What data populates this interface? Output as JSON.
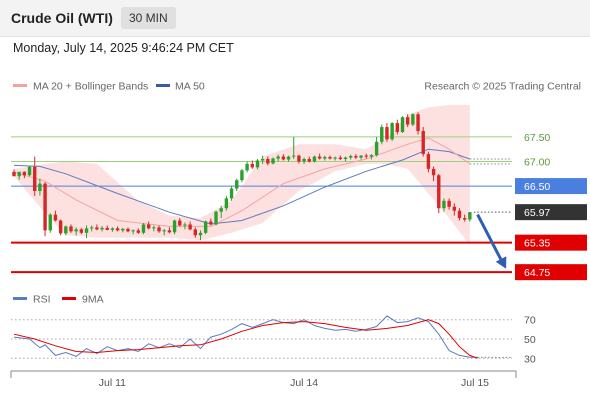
{
  "header": {
    "title": "Crude Oil (WTI)",
    "timeframe": "30 MIN",
    "datetime": "Monday, July 14, 2025 9:46:24 PM CET"
  },
  "legend": {
    "ma20_bb": "MA 20 + Bollinger Bands",
    "ma50": "MA 50",
    "credit": "Research © 2025 Trading Central",
    "rsi": "RSI",
    "rsi_ma": "9MA"
  },
  "colors": {
    "up": "#2ca02c",
    "down": "#d62728",
    "bollinger_fill": "#fde0e0",
    "ma20": "#f4a3a3",
    "ma50": "#5b7cc0",
    "support": "#e00000",
    "pivot": "#4a7fe0",
    "resistance": "#9bd17c",
    "last_price": "#333333"
  },
  "chart_data": [
    {
      "type": "candlestick",
      "title": "Crude Oil (WTI) 30 MIN",
      "x_ticks": [
        "Jul 11",
        "Jul 14",
        "Jul 15"
      ],
      "ylim": [
        64.55,
        68.25
      ],
      "candles": [
        [
          66.79,
          66.84,
          66.7,
          66.7
        ],
        [
          66.7,
          66.79,
          66.63,
          66.79
        ],
        [
          66.79,
          66.8,
          66.66,
          66.72
        ],
        [
          66.72,
          66.91,
          66.7,
          66.89
        ],
        [
          66.89,
          67.1,
          66.3,
          66.4
        ],
        [
          66.4,
          66.65,
          66.31,
          66.55
        ],
        [
          66.55,
          66.58,
          65.48,
          65.6
        ],
        [
          65.6,
          65.95,
          65.55,
          65.92
        ],
        [
          65.92,
          66.0,
          65.78,
          65.8
        ],
        [
          65.8,
          65.82,
          65.5,
          65.54
        ],
        [
          65.54,
          65.7,
          65.5,
          65.68
        ],
        [
          65.68,
          65.72,
          65.55,
          65.58
        ],
        [
          65.58,
          65.66,
          65.5,
          65.62
        ],
        [
          65.62,
          65.65,
          65.52,
          65.55
        ],
        [
          65.55,
          65.7,
          65.44,
          65.64
        ],
        [
          65.64,
          65.7,
          65.58,
          65.66
        ],
        [
          65.66,
          65.72,
          65.6,
          65.62
        ],
        [
          65.62,
          65.69,
          65.58,
          65.65
        ],
        [
          65.65,
          65.7,
          65.6,
          65.61
        ],
        [
          65.61,
          65.66,
          65.57,
          65.64
        ],
        [
          65.64,
          65.68,
          65.58,
          65.6
        ],
        [
          65.6,
          65.65,
          65.56,
          65.63
        ],
        [
          65.63,
          65.66,
          65.56,
          65.58
        ],
        [
          65.58,
          65.62,
          65.52,
          65.6
        ],
        [
          65.6,
          65.64,
          65.53,
          65.55
        ],
        [
          65.55,
          65.75,
          65.52,
          65.72
        ],
        [
          65.72,
          65.78,
          65.62,
          65.64
        ],
        [
          65.64,
          65.7,
          65.58,
          65.66
        ],
        [
          65.66,
          65.7,
          65.55,
          65.58
        ],
        [
          65.58,
          65.63,
          65.5,
          65.6
        ],
        [
          65.6,
          65.66,
          65.54,
          65.56
        ],
        [
          65.56,
          65.82,
          65.52,
          65.8
        ],
        [
          65.8,
          65.85,
          65.68,
          65.7
        ],
        [
          65.7,
          65.76,
          65.62,
          65.72
        ],
        [
          65.72,
          65.78,
          65.6,
          65.62
        ],
        [
          65.62,
          65.66,
          65.45,
          65.5
        ],
        [
          65.5,
          65.6,
          65.4,
          65.55
        ],
        [
          65.55,
          65.8,
          65.52,
          65.78
        ],
        [
          65.78,
          65.84,
          65.7,
          65.72
        ],
        [
          65.72,
          66.0,
          65.7,
          65.98
        ],
        [
          65.98,
          66.1,
          65.85,
          66.05
        ],
        [
          66.05,
          66.3,
          66.0,
          66.25
        ],
        [
          66.25,
          66.5,
          66.2,
          66.45
        ],
        [
          66.45,
          66.65,
          66.4,
          66.62
        ],
        [
          66.62,
          66.85,
          66.58,
          66.82
        ],
        [
          66.82,
          67.0,
          66.78,
          66.95
        ],
        [
          66.95,
          67.02,
          66.85,
          66.88
        ],
        [
          66.88,
          67.05,
          66.84,
          67.02
        ],
        [
          67.02,
          67.12,
          66.95,
          67.05
        ],
        [
          67.05,
          67.1,
          66.92,
          66.96
        ],
        [
          66.96,
          67.08,
          66.94,
          67.06
        ],
        [
          67.06,
          67.14,
          67.0,
          67.1
        ],
        [
          67.1,
          67.15,
          67.02,
          67.04
        ],
        [
          67.04,
          67.12,
          67.0,
          67.1
        ],
        [
          67.1,
          67.5,
          67.05,
          67.12
        ],
        [
          67.12,
          67.14,
          66.96,
          67.0
        ],
        [
          67.0,
          67.08,
          66.95,
          67.05
        ],
        [
          67.05,
          67.1,
          66.98,
          67.0
        ],
        [
          67.0,
          67.12,
          66.98,
          67.1
        ],
        [
          67.1,
          67.16,
          67.04,
          67.06
        ],
        [
          67.06,
          67.12,
          67.02,
          67.09
        ],
        [
          67.09,
          67.12,
          67.04,
          67.06
        ],
        [
          67.06,
          67.1,
          67.02,
          67.08
        ],
        [
          67.08,
          67.12,
          67.03,
          67.05
        ],
        [
          67.05,
          67.1,
          67.0,
          67.08
        ],
        [
          67.08,
          67.14,
          67.04,
          67.11
        ],
        [
          67.11,
          67.15,
          67.05,
          67.08
        ],
        [
          67.08,
          67.13,
          67.04,
          67.12
        ],
        [
          67.12,
          67.16,
          67.06,
          67.1
        ],
        [
          67.1,
          67.15,
          67.04,
          67.13
        ],
        [
          67.13,
          67.5,
          67.1,
          67.4
        ],
        [
          67.4,
          67.75,
          67.35,
          67.7
        ],
        [
          67.7,
          67.78,
          67.4,
          67.45
        ],
        [
          67.45,
          67.8,
          67.42,
          67.78
        ],
        [
          67.78,
          67.85,
          67.55,
          67.6
        ],
        [
          67.6,
          67.92,
          67.58,
          67.9
        ],
        [
          67.9,
          67.96,
          67.7,
          67.75
        ],
        [
          67.75,
          67.98,
          67.72,
          67.96
        ],
        [
          67.96,
          68.0,
          67.55,
          67.62
        ],
        [
          67.62,
          67.7,
          67.1,
          67.15
        ],
        [
          67.15,
          67.2,
          66.78,
          66.85
        ],
        [
          66.85,
          66.9,
          66.6,
          66.72
        ],
        [
          66.72,
          66.75,
          65.95,
          66.05
        ],
        [
          66.05,
          66.25,
          65.98,
          66.2
        ],
        [
          66.2,
          66.25,
          66.02,
          66.08
        ],
        [
          66.08,
          66.15,
          65.9,
          66.0
        ],
        [
          66.0,
          66.05,
          65.8,
          65.85
        ],
        [
          65.85,
          65.92,
          65.78,
          65.82
        ],
        [
          65.82,
          65.97,
          65.78,
          65.97
        ]
      ],
      "ma20": [
        [
          0,
          66.78
        ],
        [
          6,
          66.6
        ],
        [
          12,
          66.22
        ],
        [
          20,
          65.8
        ],
        [
          30,
          65.68
        ],
        [
          38,
          65.68
        ],
        [
          44,
          66.0
        ],
        [
          52,
          66.55
        ],
        [
          60,
          66.85
        ],
        [
          68,
          67.05
        ],
        [
          76,
          67.35
        ],
        [
          80,
          67.48
        ],
        [
          84,
          67.25
        ],
        [
          88,
          66.95
        ]
      ],
      "ma50": [
        [
          0,
          66.92
        ],
        [
          5,
          66.9
        ],
        [
          10,
          66.75
        ],
        [
          20,
          66.35
        ],
        [
          30,
          65.97
        ],
        [
          38,
          65.73
        ],
        [
          44,
          65.8
        ],
        [
          52,
          66.1
        ],
        [
          60,
          66.48
        ],
        [
          68,
          66.8
        ],
        [
          75,
          67.03
        ],
        [
          80,
          67.25
        ],
        [
          84,
          67.2
        ],
        [
          88,
          67.05
        ]
      ],
      "bollinger_upper": [
        [
          0,
          66.85
        ],
        [
          6,
          66.95
        ],
        [
          10,
          67.0
        ],
        [
          16,
          66.95
        ],
        [
          24,
          66.2
        ],
        [
          30,
          65.9
        ],
        [
          36,
          65.85
        ],
        [
          42,
          66.2
        ],
        [
          48,
          67.1
        ],
        [
          55,
          67.35
        ],
        [
          62,
          67.35
        ],
        [
          68,
          67.25
        ],
        [
          72,
          67.5
        ],
        [
          76,
          67.95
        ],
        [
          80,
          68.1
        ],
        [
          84,
          68.15
        ],
        [
          88,
          68.15
        ]
      ],
      "bollinger_lower": [
        [
          0,
          66.7
        ],
        [
          6,
          65.95
        ],
        [
          10,
          65.5
        ],
        [
          16,
          65.45
        ],
        [
          24,
          65.45
        ],
        [
          30,
          65.45
        ],
        [
          36,
          65.4
        ],
        [
          42,
          65.55
        ],
        [
          48,
          65.75
        ],
        [
          55,
          66.4
        ],
        [
          62,
          66.8
        ],
        [
          68,
          66.95
        ],
        [
          72,
          66.95
        ],
        [
          76,
          66.85
        ],
        [
          80,
          66.35
        ],
        [
          84,
          65.85
        ],
        [
          88,
          65.3
        ]
      ],
      "levels": [
        {
          "label": "67.50",
          "value": 67.5,
          "kind": "resistance"
        },
        {
          "label": "67.00",
          "value": 67.0,
          "kind": "resistance"
        },
        {
          "label": "66.50",
          "value": 66.5,
          "kind": "pivot"
        },
        {
          "label": "65.97",
          "value": 65.97,
          "kind": "last"
        },
        {
          "label": "65.35",
          "value": 65.35,
          "kind": "support"
        },
        {
          "label": "64.75",
          "value": 64.75,
          "kind": "support"
        }
      ],
      "forecast_arrow": {
        "from": [
          89.5,
          65.92
        ],
        "to": [
          95,
          64.82
        ]
      }
    },
    {
      "type": "line",
      "title": "RSI",
      "ylim": [
        22,
        78
      ],
      "y_ticks": [
        30,
        50,
        70
      ],
      "series": [
        {
          "name": "RSI",
          "points": [
            [
              0,
              52
            ],
            [
              3,
              50
            ],
            [
              5,
              41
            ],
            [
              6,
              44
            ],
            [
              8,
              33
            ],
            [
              10,
              36
            ],
            [
              12,
              32
            ],
            [
              14,
              40
            ],
            [
              16,
              35
            ],
            [
              18,
              42
            ],
            [
              20,
              38
            ],
            [
              22,
              40
            ],
            [
              24,
              37
            ],
            [
              26,
              45
            ],
            [
              28,
              41
            ],
            [
              30,
              45
            ],
            [
              32,
              41
            ],
            [
              34,
              50
            ],
            [
              36,
              40
            ],
            [
              38,
              52
            ],
            [
              40,
              55
            ],
            [
              42,
              60
            ],
            [
              44,
              66
            ],
            [
              46,
              62
            ],
            [
              48,
              66
            ],
            [
              50,
              70
            ],
            [
              52,
              67
            ],
            [
              54,
              66
            ],
            [
              56,
              70
            ],
            [
              58,
              64
            ],
            [
              60,
              61
            ],
            [
              62,
              59
            ],
            [
              64,
              60
            ],
            [
              66,
              58
            ],
            [
              68,
              60
            ],
            [
              70,
              63
            ],
            [
              72,
              74
            ],
            [
              74,
              67
            ],
            [
              76,
              68
            ],
            [
              78,
              72
            ],
            [
              80,
              68
            ],
            [
              82,
              55
            ],
            [
              84,
              38
            ],
            [
              86,
              33
            ],
            [
              88,
              31
            ],
            [
              89.5,
              31
            ]
          ]
        },
        {
          "name": "9MA",
          "points": [
            [
              0,
              55
            ],
            [
              4,
              50
            ],
            [
              8,
              43
            ],
            [
              12,
              37
            ],
            [
              16,
              36
            ],
            [
              20,
              38
            ],
            [
              24,
              39
            ],
            [
              28,
              41
            ],
            [
              32,
              43
            ],
            [
              36,
              44
            ],
            [
              40,
              50
            ],
            [
              44,
              58
            ],
            [
              48,
              64
            ],
            [
              52,
              67
            ],
            [
              56,
              68
            ],
            [
              60,
              66
            ],
            [
              64,
              62
            ],
            [
              68,
              59
            ],
            [
              72,
              61
            ],
            [
              76,
              64
            ],
            [
              80,
              70
            ],
            [
              82,
              66
            ],
            [
              84,
              55
            ],
            [
              86,
              42
            ],
            [
              88,
              33
            ],
            [
              89.5,
              30
            ]
          ]
        }
      ]
    }
  ]
}
